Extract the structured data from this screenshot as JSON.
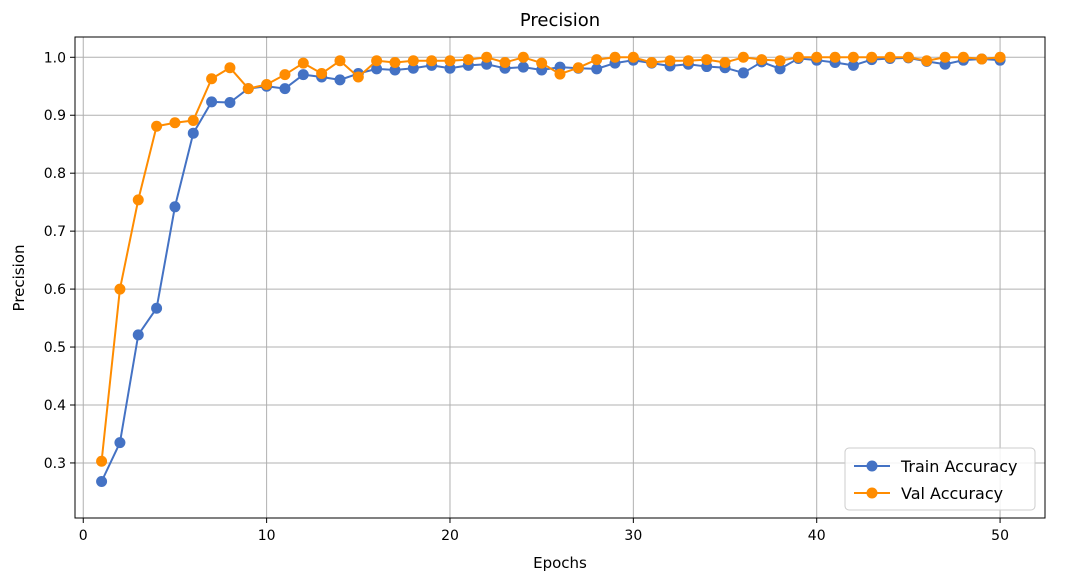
{
  "chart_data": {
    "type": "line",
    "title": "Precision",
    "xlabel": "Epochs",
    "ylabel": "Precision",
    "xlim": [
      -0.45,
      52.45
    ],
    "ylim": [
      0.205,
      1.035
    ],
    "xticks": [
      0,
      10,
      20,
      30,
      40,
      50
    ],
    "yticks": [
      0.3,
      0.4,
      0.5,
      0.6,
      0.7,
      0.8,
      0.9,
      1.0
    ],
    "grid": true,
    "legend_position": "bottom-right",
    "x": [
      1,
      2,
      3,
      4,
      5,
      6,
      7,
      8,
      9,
      10,
      11,
      12,
      13,
      14,
      15,
      16,
      17,
      18,
      19,
      20,
      21,
      22,
      23,
      24,
      25,
      26,
      27,
      28,
      29,
      30,
      31,
      32,
      33,
      34,
      35,
      36,
      37,
      38,
      39,
      40,
      41,
      42,
      43,
      44,
      45,
      46,
      47,
      48,
      49,
      50
    ],
    "series": [
      {
        "name": "Train Accuracy",
        "color": "#4472c4",
        "values": [
          0.268,
          0.335,
          0.521,
          0.567,
          0.742,
          0.869,
          0.923,
          0.922,
          0.946,
          0.95,
          0.946,
          0.97,
          0.966,
          0.961,
          0.972,
          0.98,
          0.978,
          0.981,
          0.986,
          0.981,
          0.986,
          0.988,
          0.981,
          0.983,
          0.978,
          0.983,
          0.981,
          0.98,
          0.99,
          0.995,
          0.99,
          0.985,
          0.988,
          0.984,
          0.982,
          0.973,
          0.992,
          0.98,
          0.998,
          0.995,
          0.991,
          0.986,
          0.996,
          0.998,
          0.999,
          0.993,
          0.988,
          0.995,
          0.997,
          0.995
        ]
      },
      {
        "name": "Val Accuracy",
        "color": "#ff8c00",
        "values": [
          0.303,
          0.6,
          0.754,
          0.881,
          0.887,
          0.891,
          0.963,
          0.982,
          0.946,
          0.953,
          0.97,
          0.99,
          0.972,
          0.994,
          0.966,
          0.994,
          0.991,
          0.994,
          0.994,
          0.994,
          0.996,
          1.0,
          0.991,
          1.0,
          0.99,
          0.971,
          0.982,
          0.996,
          1.0,
          1.0,
          0.991,
          0.994,
          0.994,
          0.996,
          0.991,
          1.0,
          0.996,
          0.994,
          1.0,
          1.0,
          1.0,
          1.0,
          1.0,
          1.0,
          1.0,
          0.994,
          1.0,
          1.0,
          0.997,
          1.0
        ]
      }
    ]
  }
}
